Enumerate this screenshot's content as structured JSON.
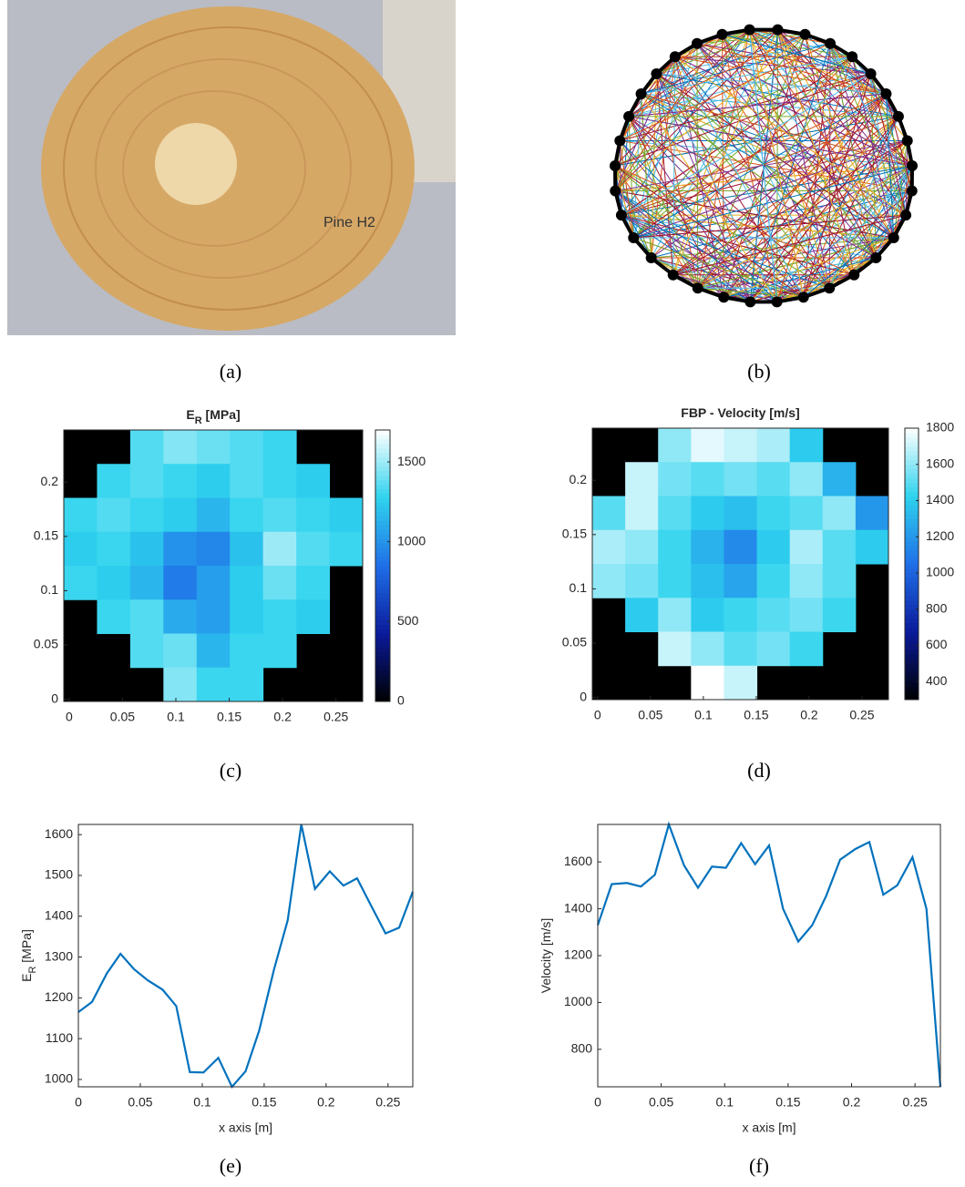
{
  "captions": [
    "(a)",
    "(b)",
    "(c)",
    "(d)",
    "(e)",
    "(f)"
  ],
  "chart_data": [
    {
      "type": "heatmap",
      "title_parts": [
        "E",
        "R",
        " [MPa]"
      ],
      "xlim": [
        -0.005,
        0.275
      ],
      "ylim": [
        -0.002,
        0.248
      ],
      "xticks": [
        0,
        0.05,
        0.1,
        0.15,
        0.2,
        0.25
      ],
      "yticks": [
        0,
        0.05,
        0.1,
        0.15,
        0.2
      ],
      "clim": [
        0,
        1700
      ],
      "cticks": [
        0,
        500,
        1000,
        1500
      ],
      "colormap": [
        "#000000",
        "#0a1a9a",
        "#1f6fe8",
        "#2ed3ee",
        "#ffffff"
      ],
      "z": [
        [
          null,
          null,
          1350,
          1450,
          1400,
          1350,
          1300,
          null,
          null
        ],
        [
          null,
          1300,
          1350,
          1300,
          1250,
          1350,
          1300,
          1250,
          null
        ],
        [
          1300,
          1350,
          1300,
          1250,
          1150,
          1300,
          1350,
          1300,
          1250
        ],
        [
          1250,
          1300,
          1200,
          1000,
          950,
          1200,
          1500,
          1350,
          1300
        ],
        [
          1300,
          1250,
          1150,
          900,
          1050,
          1250,
          1400,
          1300,
          null
        ],
        [
          null,
          1300,
          1350,
          1100,
          1050,
          1250,
          1300,
          1250,
          null
        ],
        [
          null,
          null,
          1350,
          1400,
          1150,
          1300,
          1300,
          null,
          null
        ],
        [
          null,
          null,
          null,
          1450,
          1300,
          1300,
          null,
          null,
          null
        ]
      ]
    },
    {
      "type": "heatmap",
      "title_parts": [
        "FBP - Velocity [m/s]"
      ],
      "xlim": [
        -0.005,
        0.275
      ],
      "ylim": [
        -0.002,
        0.248
      ],
      "xticks": [
        0,
        0.05,
        0.1,
        0.15,
        0.2,
        0.25
      ],
      "yticks": [
        0,
        0.05,
        0.1,
        0.15,
        0.2
      ],
      "clim": [
        300,
        1800
      ],
      "cticks": [
        400,
        600,
        800,
        1000,
        1200,
        1400,
        1600,
        1800
      ],
      "colormap": [
        "#000000",
        "#0a1a9a",
        "#1f6fe8",
        "#2ed3ee",
        "#ffffff"
      ],
      "z": [
        [
          null,
          null,
          1600,
          1750,
          1700,
          1650,
          1400,
          null,
          null
        ],
        [
          null,
          1700,
          1550,
          1500,
          1550,
          1500,
          1600,
          1300,
          null
        ],
        [
          1500,
          1700,
          1500,
          1400,
          1350,
          1450,
          1500,
          1600,
          1200
        ],
        [
          1650,
          1600,
          1450,
          1300,
          1150,
          1400,
          1650,
          1500,
          1400
        ],
        [
          1600,
          1550,
          1450,
          1350,
          1250,
          1450,
          1600,
          1500,
          null
        ],
        [
          null,
          1400,
          1600,
          1400,
          1450,
          1500,
          1550,
          1450,
          null
        ],
        [
          null,
          null,
          1700,
          1600,
          1500,
          1550,
          1450,
          null,
          null
        ],
        [
          null,
          null,
          null,
          1800,
          1700,
          null,
          null,
          null,
          null
        ]
      ]
    },
    {
      "type": "line",
      "xlabel": "x axis [m]",
      "ylabel_parts": [
        "E",
        "R",
        " [MPa]"
      ],
      "color": "#0072bd",
      "xlim": [
        0,
        0.27
      ],
      "ylim": [
        982,
        1625
      ],
      "xticks": [
        0,
        0.05,
        0.1,
        0.15,
        0.2,
        0.25
      ],
      "yticks": [
        1000,
        1100,
        1200,
        1300,
        1400,
        1500,
        1600
      ],
      "x": [
        0,
        0.011,
        0.023,
        0.034,
        0.045,
        0.056,
        0.068,
        0.079,
        0.09,
        0.101,
        0.113,
        0.124,
        0.135,
        0.146,
        0.158,
        0.169,
        0.18,
        0.191,
        0.203,
        0.214,
        0.225,
        0.236,
        0.248,
        0.259,
        0.27
      ],
      "values": [
        1165,
        1190,
        1260,
        1308,
        1270,
        1243,
        1220,
        1180,
        1018,
        1017,
        1053,
        982,
        1020,
        1120,
        1270,
        1390,
        1625,
        1467,
        1510,
        1475,
        1493,
        1428,
        1358,
        1372,
        1460
      ]
    },
    {
      "type": "line",
      "xlabel": "x axis [m]",
      "ylabel_parts": [
        "Velocity [m/s]"
      ],
      "color": "#0072bd",
      "xlim": [
        0,
        0.27
      ],
      "ylim": [
        640,
        1760
      ],
      "xticks": [
        0,
        0.05,
        0.1,
        0.15,
        0.2,
        0.25
      ],
      "yticks": [
        800,
        1000,
        1200,
        1400,
        1600
      ],
      "x": [
        0,
        0.011,
        0.023,
        0.034,
        0.045,
        0.056,
        0.068,
        0.079,
        0.09,
        0.101,
        0.113,
        0.124,
        0.135,
        0.146,
        0.158,
        0.169,
        0.18,
        0.191,
        0.203,
        0.214,
        0.225,
        0.236,
        0.248,
        0.259,
        0.27
      ],
      "values": [
        1330,
        1505,
        1510,
        1495,
        1545,
        1760,
        1585,
        1490,
        1580,
        1575,
        1680,
        1590,
        1670,
        1400,
        1260,
        1330,
        1455,
        1610,
        1655,
        1685,
        1460,
        1500,
        1620,
        1400,
        640
      ]
    }
  ]
}
